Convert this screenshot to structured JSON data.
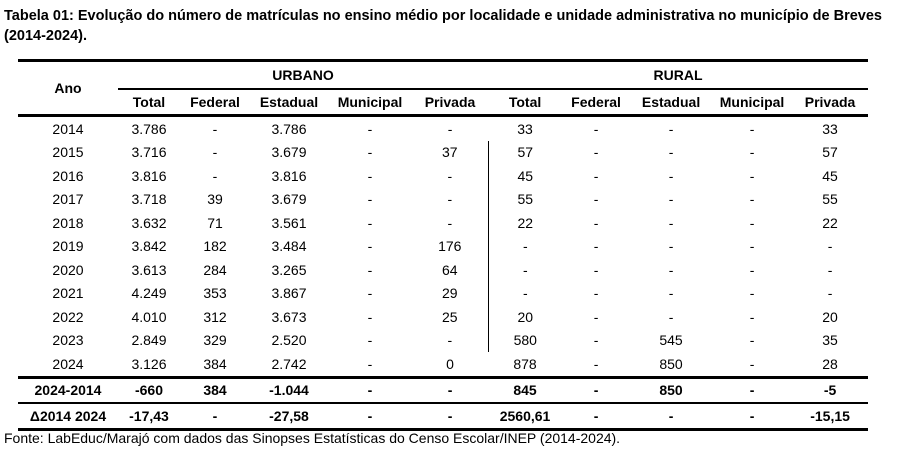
{
  "title": "Tabela 01: Evolução do número de matrículas no ensino médio por localidade e unidade administrativa no município de Breves (2014-2024).",
  "table": {
    "row_header": "Ano",
    "groups": [
      "URBANO",
      "RURAL"
    ],
    "columns": [
      "Total",
      "Federal",
      "Estadual",
      "Municipal",
      "Privada",
      "Total",
      "Federal",
      "Estadual",
      "Municipal",
      "Privada"
    ],
    "rows": [
      [
        "2014",
        "3.786",
        "-",
        "3.786",
        "-",
        "-",
        "33",
        "-",
        "-",
        "-",
        "33"
      ],
      [
        "2015",
        "3.716",
        "-",
        "3.679",
        "-",
        "37",
        "57",
        "-",
        "-",
        "-",
        "57"
      ],
      [
        "2016",
        "3.816",
        "-",
        "3.816",
        "-",
        "-",
        "45",
        "-",
        "-",
        "-",
        "45"
      ],
      [
        "2017",
        "3.718",
        "39",
        "3.679",
        "-",
        "-",
        "55",
        "-",
        "-",
        "-",
        "55"
      ],
      [
        "2018",
        "3.632",
        "71",
        "3.561",
        "-",
        "-",
        "22",
        "-",
        "-",
        "-",
        "22"
      ],
      [
        "2019",
        "3.842",
        "182",
        "3.484",
        "-",
        "176",
        "-",
        "-",
        "-",
        "-",
        "-"
      ],
      [
        "2020",
        "3.613",
        "284",
        "3.265",
        "-",
        "64",
        "-",
        "-",
        "-",
        "-",
        "-"
      ],
      [
        "2021",
        "4.249",
        "353",
        "3.867",
        "-",
        "29",
        "-",
        "-",
        "-",
        "-",
        "-"
      ],
      [
        "2022",
        "4.010",
        "312",
        "3.673",
        "-",
        "25",
        "20",
        "-",
        "-",
        "-",
        "20"
      ],
      [
        "2023",
        "2.849",
        "329",
        "2.520",
        "-",
        "-",
        "580",
        "-",
        "545",
        "-",
        "35"
      ],
      [
        "2024",
        "3.126",
        "384",
        "2.742",
        "-",
        "0",
        "878",
        "-",
        "850",
        "-",
        "28"
      ]
    ],
    "summary": [
      [
        "2024-2014",
        "-660",
        "384",
        "-1.044",
        "-",
        "-",
        "845",
        "-",
        "850",
        "-",
        "-5"
      ],
      [
        "Δ2014 2024",
        "-17,43",
        "-",
        "-27,58",
        "-",
        "-",
        "2560,61",
        "-",
        "-",
        "-",
        "-15,15"
      ]
    ]
  },
  "footer": "Fonte: LabEduc/Marajó com dados das Sinopses Estatísticas do Censo Escolar/INEP (2014-2024)."
}
